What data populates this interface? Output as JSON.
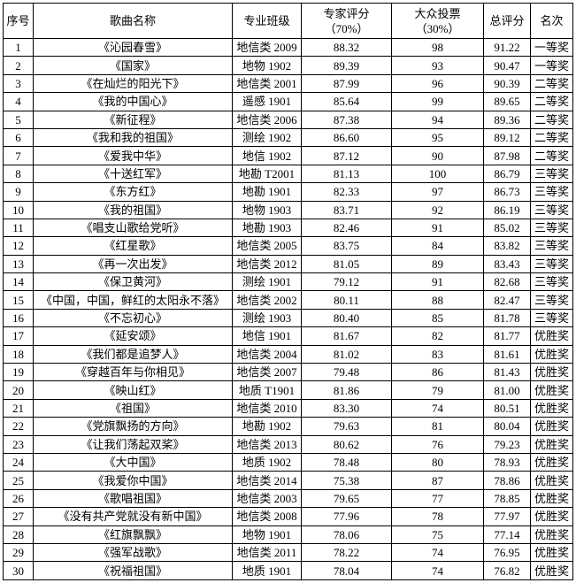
{
  "headers": {
    "index": "序号",
    "song": "歌曲名称",
    "class": "专业班级",
    "expert": "专家评分",
    "expert_weight": "（70%）",
    "public": "大众投票",
    "public_weight": "（30%）",
    "total": "总评分",
    "rank": "名次"
  },
  "rows": [
    [
      "1",
      "《沁园春雪》",
      "地信类 2009",
      "88.32",
      "98",
      "91.22",
      "一等奖"
    ],
    [
      "2",
      "《国家》",
      "地物 1902",
      "89.39",
      "93",
      "90.47",
      "一等奖"
    ],
    [
      "3",
      "《在灿烂的阳光下》",
      "地信类 2001",
      "87.99",
      "96",
      "90.39",
      "二等奖"
    ],
    [
      "4",
      "《我的中国心》",
      "遥感 1901",
      "85.64",
      "99",
      "89.65",
      "二等奖"
    ],
    [
      "5",
      "《新征程》",
      "地信类 2006",
      "87.38",
      "94",
      "89.36",
      "二等奖"
    ],
    [
      "6",
      "《我和我的祖国》",
      "测绘 1902",
      "86.60",
      "95",
      "89.12",
      "二等奖"
    ],
    [
      "7",
      "《爱我中华》",
      "地信 1902",
      "87.12",
      "90",
      "87.98",
      "二等奖"
    ],
    [
      "8",
      "《十送红军》",
      "地勘 T2001",
      "81.13",
      "100",
      "86.79",
      "三等奖"
    ],
    [
      "9",
      "《东方红》",
      "地勘 1901",
      "82.33",
      "97",
      "86.73",
      "三等奖"
    ],
    [
      "10",
      "《我的祖国》",
      "地物 1903",
      "83.71",
      "92",
      "86.19",
      "三等奖"
    ],
    [
      "11",
      "《唱支山歌给党听》",
      "地勘 1903",
      "82.46",
      "91",
      "85.02",
      "三等奖"
    ],
    [
      "12",
      "《红星歌》",
      "地信类 2005",
      "83.75",
      "84",
      "83.82",
      "三等奖"
    ],
    [
      "13",
      "《再一次出发》",
      "地信类 2012",
      "81.05",
      "89",
      "83.43",
      "三等奖"
    ],
    [
      "14",
      "《保卫黄河》",
      "测绘 1901",
      "79.12",
      "91",
      "82.68",
      "三等奖"
    ],
    [
      "15",
      "《中国，中国，鲜红的太阳永不落》",
      "地信类 2002",
      "80.11",
      "88",
      "82.47",
      "三等奖"
    ],
    [
      "16",
      "《不忘初心》",
      "测绘 1903",
      "80.40",
      "85",
      "81.78",
      "三等奖"
    ],
    [
      "17",
      "《延安颂》",
      "地信 1901",
      "81.67",
      "82",
      "81.77",
      "优胜奖"
    ],
    [
      "18",
      "《我们都是追梦人》",
      "地信类 2004",
      "81.02",
      "83",
      "81.61",
      "优胜奖"
    ],
    [
      "19",
      "《穿越百年与你相见》",
      "地信类 2007",
      "79.48",
      "86",
      "81.43",
      "优胜奖"
    ],
    [
      "20",
      "《映山红》",
      "地质 T1901",
      "81.86",
      "79",
      "81.00",
      "优胜奖"
    ],
    [
      "21",
      "《祖国》",
      "地信类 2010",
      "83.30",
      "74",
      "80.51",
      "优胜奖"
    ],
    [
      "22",
      "《党旗飘扬的方向》",
      "地勘 1902",
      "79.63",
      "81",
      "80.04",
      "优胜奖"
    ],
    [
      "23",
      "《让我们荡起双桨》",
      "地信类 2013",
      "80.62",
      "76",
      "79.23",
      "优胜奖"
    ],
    [
      "24",
      "《大中国》",
      "地质 1902",
      "78.48",
      "80",
      "78.93",
      "优胜奖"
    ],
    [
      "25",
      "《我爱你中国》",
      "地信类 2014",
      "75.38",
      "87",
      "78.86",
      "优胜奖"
    ],
    [
      "26",
      "《歌唱祖国》",
      "地信类 2003",
      "79.65",
      "77",
      "78.85",
      "优胜奖"
    ],
    [
      "27",
      "《没有共产党就没有新中国》",
      "地信类 2008",
      "77.96",
      "78",
      "77.97",
      "优胜奖"
    ],
    [
      "28",
      "《红旗飘飘》",
      "地物 1901",
      "78.06",
      "75",
      "77.14",
      "优胜奖"
    ],
    [
      "29",
      "《强军战歌》",
      "地信类 2011",
      "78.22",
      "74",
      "76.95",
      "优胜奖"
    ],
    [
      "30",
      "《祝福祖国》",
      "地质 1901",
      "78.04",
      "74",
      "76.82",
      "优胜奖"
    ]
  ]
}
